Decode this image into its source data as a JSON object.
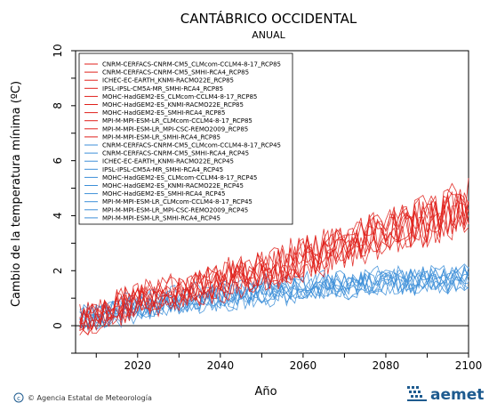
{
  "chart_data": {
    "type": "line",
    "title": "CANTÁBRICO OCCIDENTAL",
    "subtitle": "ANUAL",
    "xlabel": "Año",
    "ylabel": "Cambio de la temperatura mínima (ºC)",
    "xlim": [
      2005,
      2100
    ],
    "ylim": [
      -1,
      10
    ],
    "xticks": [
      2020,
      2040,
      2060,
      2080,
      2100
    ],
    "yticks": [
      0,
      2,
      4,
      6,
      8,
      10
    ],
    "zero_line": 0,
    "grid": false,
    "legend_position": "top-left",
    "series_groups": [
      {
        "scenario": "RCP85",
        "color": "#e0201b",
        "start_year": 2006,
        "points_per_year": 1,
        "models": [
          "CNRM-CERFACS-CNRM-CM5_CLMcom-CCLM4-8-17_RCP85",
          "CNRM-CERFACS-CNRM-CM5_SMHI-RCA4_RCP85",
          "ICHEC-EC-EARTH_KNMI-RACMO22E_RCP85",
          "IPSL-IPSL-CM5A-MR_SMHI-RCA4_RCP85",
          "MOHC-HadGEM2-ES_CLMcom-CCLM4-8-17_RCP85",
          "MOHC-HadGEM2-ES_KNMI-RACMO22E_RCP85",
          "MOHC-HadGEM2-ES_SMHI-RCA4_RCP85",
          "MPI-M-MPI-ESM-LR_CLMcom-CCLM4-8-17_RCP85",
          "MPI-M-MPI-ESM-LR_MPI-CSC-REMO2009_RCP85",
          "MPI-M-MPI-ESM-LR_SMHI-RCA4_RCP85"
        ],
        "trend_anchors_year": [
          2006,
          2020,
          2040,
          2060,
          2080,
          2100
        ],
        "trend_anchors_value": [
          0.2,
          0.9,
          1.6,
          2.4,
          3.4,
          4.3
        ]
      },
      {
        "scenario": "RCP45",
        "color": "#3d8fd8",
        "start_year": 2006,
        "points_per_year": 1,
        "models": [
          "CNRM-CERFACS-CNRM-CM5_CLMcom-CCLM4-8-17_RCP45",
          "CNRM-CERFACS-CNRM-CM5_SMHI-RCA4_RCP45",
          "ICHEC-EC-EARTH_KNMI-RACMO22E_RCP45",
          "IPSL-IPSL-CM5A-MR_SMHI-RCA4_RCP45",
          "MOHC-HadGEM2-ES_CLMcom-CCLM4-8-17_RCP45",
          "MOHC-HadGEM2-ES_KNMI-RACMO22E_RCP45",
          "MOHC-HadGEM2-ES_SMHI-RCA4_RCP45",
          "MPI-M-MPI-ESM-LR_CLMcom-CCLM4-8-17_RCP45",
          "MPI-M-MPI-ESM-LR_MPI-CSC-REMO2009_RCP45",
          "MPI-M-MPI-ESM-LR_SMHI-RCA4_RCP45"
        ],
        "trend_anchors_year": [
          2006,
          2020,
          2040,
          2060,
          2080,
          2100
        ],
        "trend_anchors_value": [
          0.2,
          0.7,
          1.1,
          1.4,
          1.6,
          1.7
        ]
      }
    ]
  },
  "footer": {
    "credit": "© Agencia Estatal de Meteorología",
    "brand": "aemet"
  }
}
